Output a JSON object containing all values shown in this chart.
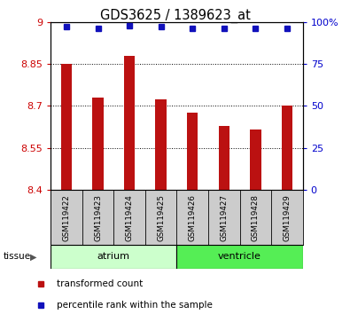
{
  "title": "GDS3625 / 1389623_at",
  "samples": [
    "GSM119422",
    "GSM119423",
    "GSM119424",
    "GSM119425",
    "GSM119426",
    "GSM119427",
    "GSM119428",
    "GSM119429"
  ],
  "bar_values": [
    8.85,
    8.73,
    8.88,
    8.725,
    8.675,
    8.63,
    8.615,
    8.7
  ],
  "percentile_values": [
    97,
    96,
    98,
    97,
    96,
    96,
    96,
    96
  ],
  "ylim_left": [
    8.4,
    9.0
  ],
  "ylim_right": [
    0,
    100
  ],
  "yticks_left": [
    8.4,
    8.55,
    8.7,
    8.85,
    9.0
  ],
  "yticks_right": [
    0,
    25,
    50,
    75,
    100
  ],
  "yticklabels_left": [
    "8.4",
    "8.55",
    "8.7",
    "8.85",
    "9"
  ],
  "yticklabels_right": [
    "0",
    "25",
    "50",
    "75",
    "100%"
  ],
  "bar_color": "#bb1111",
  "dot_color": "#1111bb",
  "grid_color": "#000000",
  "tissue_groups": [
    {
      "label": "atrium",
      "start": 0,
      "end": 4,
      "color": "#ccffcc"
    },
    {
      "label": "ventricle",
      "start": 4,
      "end": 8,
      "color": "#55ee55"
    }
  ],
  "tissue_label": "tissue",
  "legend_items": [
    {
      "label": "transformed count",
      "color": "#bb1111"
    },
    {
      "label": "percentile rank within the sample",
      "color": "#1111bb"
    }
  ],
  "left_color": "#cc0000",
  "right_color": "#0000cc"
}
